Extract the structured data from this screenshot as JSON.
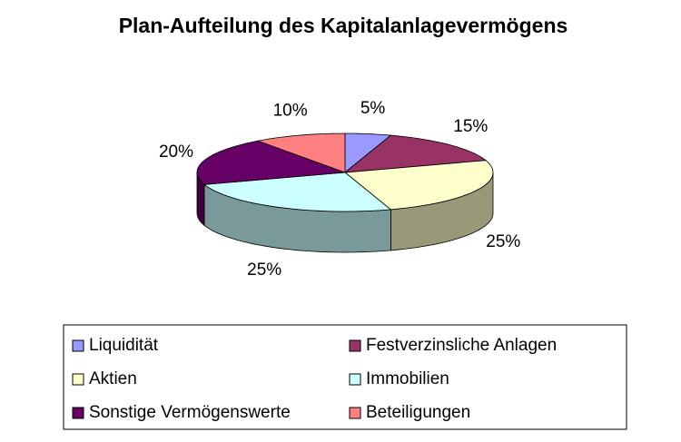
{
  "chart_data": {
    "type": "pie",
    "title": "Plan-Aufteilung des Kapitalanlagevermögens",
    "categories": [
      "Liquidität",
      "Festverzinsliche Anlagen",
      "Aktien",
      "Immobilien",
      "Sonstige Vermögenswerte",
      "Beteiligungen"
    ],
    "values": [
      5,
      15,
      25,
      25,
      20,
      10
    ],
    "value_labels": [
      "5%",
      "15%",
      "25%",
      "25%",
      "20%",
      "10%"
    ],
    "colors": [
      "#9999ff",
      "#993366",
      "#ffffcc",
      "#ccffff",
      "#660066",
      "#ff8080"
    ],
    "legend": "bottom"
  }
}
